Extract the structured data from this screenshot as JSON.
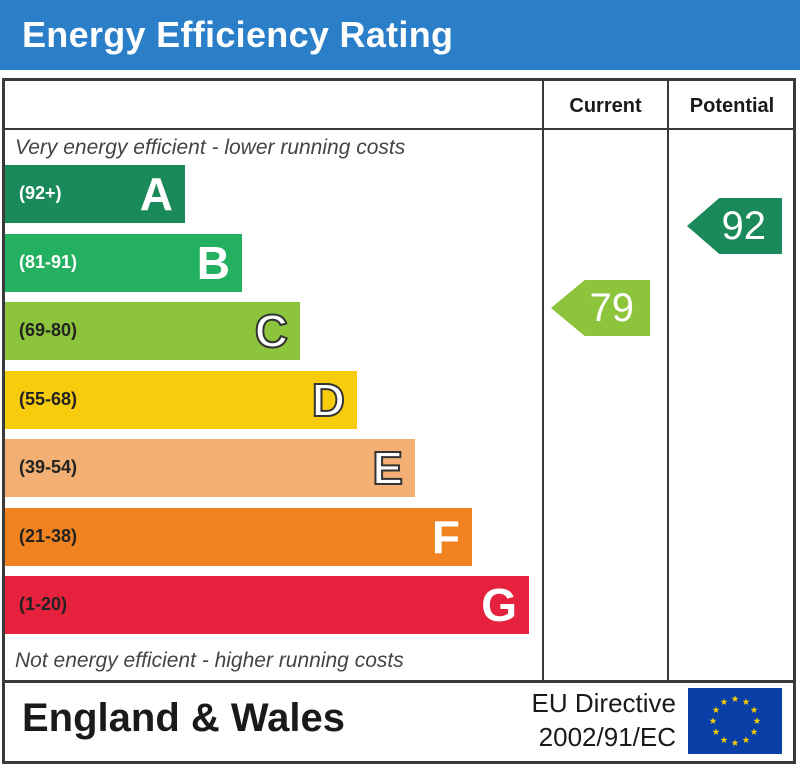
{
  "header": {
    "title": "Energy Efficiency Rating"
  },
  "columns": {
    "current": "Current",
    "potential": "Potential"
  },
  "notes": {
    "top": "Very energy efficient - lower running costs",
    "bottom": "Not energy efficient - higher running costs"
  },
  "colors": {
    "header": "#2a7fc8",
    "flag": "#0b3fa8",
    "flag_stars": "#f5d000"
  },
  "chart_data": {
    "type": "bar",
    "title": "Energy Efficiency Rating",
    "bands": [
      {
        "letter": "A",
        "range": "(92+)",
        "color": "#1a8a5a",
        "range_color": "#ffffff",
        "outlined": false
      },
      {
        "letter": "B",
        "range": "(81-91)",
        "color": "#23b060",
        "range_color": "#ffffff",
        "outlined": false
      },
      {
        "letter": "C",
        "range": "(69-80)",
        "color": "#8cc43c",
        "range_color": "#222222",
        "outlined": true
      },
      {
        "letter": "D",
        "range": "(55-68)",
        "color": "#f6cc0c",
        "range_color": "#222222",
        "outlined": true
      },
      {
        "letter": "E",
        "range": "(39-54)",
        "color": "#f4b074",
        "range_color": "#222222",
        "outlined": true
      },
      {
        "letter": "F",
        "range": "(21-38)",
        "color": "#f08320",
        "range_color": "#222222",
        "outlined": false
      },
      {
        "letter": "G",
        "range": "(1-20)",
        "color": "#e5213d",
        "range_color": "#222222",
        "outlined": false
      }
    ],
    "current": {
      "value": 79,
      "band": "C",
      "color": "#8cc43c"
    },
    "potential": {
      "value": 92,
      "band": "A",
      "color": "#1a8a5a"
    }
  },
  "footer": {
    "region": "England & Wales",
    "directive_line1": "EU Directive",
    "directive_line2": "2002/91/EC"
  }
}
